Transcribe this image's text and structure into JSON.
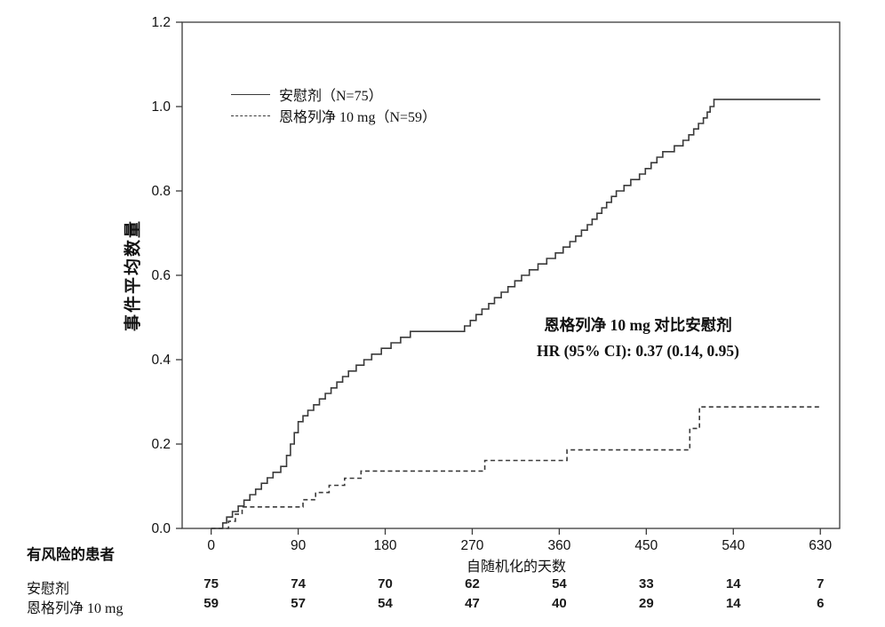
{
  "colors": {
    "line": "#3a3a3a",
    "frame": "#3a3a3a",
    "text": "#111111"
  },
  "chart_data": {
    "type": "line",
    "step": true,
    "title": "",
    "xlabel": "自随机化的天数",
    "ylabel": "事件平均数量",
    "xlim": [
      -30,
      650
    ],
    "ylim": [
      0,
      1.2
    ],
    "xticks": [
      0,
      90,
      180,
      270,
      360,
      450,
      540,
      630
    ],
    "yticks": [
      0.0,
      0.2,
      0.4,
      0.6,
      0.8,
      1.0,
      1.2
    ],
    "grid": false,
    "legend_position": "upper-left-inside",
    "annotation": {
      "line1": "恩格列净 10 mg 对比安慰剂",
      "line2": "HR (95% CI): 0.37 (0.14, 0.95)"
    },
    "series": [
      {
        "name": "安慰剂（N=75）",
        "dash": "solid",
        "points": [
          [
            0,
            0
          ],
          [
            8,
            0
          ],
          [
            12,
            0.013
          ],
          [
            16,
            0.027
          ],
          [
            22,
            0.04
          ],
          [
            28,
            0.053
          ],
          [
            34,
            0.067
          ],
          [
            40,
            0.08
          ],
          [
            46,
            0.093
          ],
          [
            52,
            0.107
          ],
          [
            58,
            0.12
          ],
          [
            64,
            0.133
          ],
          [
            72,
            0.147
          ],
          [
            78,
            0.173
          ],
          [
            82,
            0.2
          ],
          [
            86,
            0.227
          ],
          [
            90,
            0.253
          ],
          [
            95,
            0.267
          ],
          [
            100,
            0.28
          ],
          [
            106,
            0.293
          ],
          [
            112,
            0.307
          ],
          [
            118,
            0.32
          ],
          [
            124,
            0.333
          ],
          [
            130,
            0.347
          ],
          [
            136,
            0.36
          ],
          [
            142,
            0.373
          ],
          [
            150,
            0.387
          ],
          [
            158,
            0.4
          ],
          [
            166,
            0.413
          ],
          [
            176,
            0.427
          ],
          [
            186,
            0.44
          ],
          [
            196,
            0.453
          ],
          [
            206,
            0.467
          ],
          [
            262,
            0.48
          ],
          [
            268,
            0.493
          ],
          [
            274,
            0.507
          ],
          [
            280,
            0.52
          ],
          [
            287,
            0.533
          ],
          [
            293,
            0.547
          ],
          [
            300,
            0.56
          ],
          [
            307,
            0.573
          ],
          [
            314,
            0.587
          ],
          [
            321,
            0.6
          ],
          [
            329,
            0.613
          ],
          [
            338,
            0.627
          ],
          [
            347,
            0.64
          ],
          [
            356,
            0.653
          ],
          [
            364,
            0.667
          ],
          [
            371,
            0.68
          ],
          [
            377,
            0.693
          ],
          [
            383,
            0.707
          ],
          [
            389,
            0.72
          ],
          [
            394,
            0.733
          ],
          [
            399,
            0.747
          ],
          [
            404,
            0.76
          ],
          [
            409,
            0.773
          ],
          [
            414,
            0.787
          ],
          [
            419,
            0.8
          ],
          [
            427,
            0.813
          ],
          [
            434,
            0.827
          ],
          [
            443,
            0.84
          ],
          [
            449,
            0.853
          ],
          [
            455,
            0.867
          ],
          [
            461,
            0.88
          ],
          [
            467,
            0.893
          ],
          [
            479,
            0.907
          ],
          [
            488,
            0.92
          ],
          [
            494,
            0.933
          ],
          [
            499,
            0.947
          ],
          [
            504,
            0.96
          ],
          [
            509,
            0.973
          ],
          [
            513,
            0.987
          ],
          [
            516,
            1.0
          ],
          [
            520,
            1.017
          ],
          [
            630,
            1.017
          ]
        ]
      },
      {
        "name": "恩格列净 10 mg（N=59）",
        "dash": "dashed",
        "points": [
          [
            0,
            0
          ],
          [
            14,
            0
          ],
          [
            18,
            0.017
          ],
          [
            25,
            0.034
          ],
          [
            32,
            0.051
          ],
          [
            95,
            0.068
          ],
          [
            108,
            0.085
          ],
          [
            122,
            0.102
          ],
          [
            138,
            0.119
          ],
          [
            155,
            0.136
          ],
          [
            283,
            0.161
          ],
          [
            368,
            0.186
          ],
          [
            495,
            0.237
          ],
          [
            505,
            0.288
          ],
          [
            630,
            0.288
          ]
        ]
      }
    ],
    "risk_table": {
      "header": "有风险的患者",
      "x": [
        0,
        90,
        180,
        270,
        360,
        450,
        540,
        630
      ],
      "rows": [
        {
          "label": "安慰剂",
          "values": [
            75,
            74,
            70,
            62,
            54,
            33,
            14,
            7
          ]
        },
        {
          "label": "恩格列净 10 mg",
          "values": [
            59,
            57,
            54,
            47,
            40,
            29,
            14,
            6
          ]
        }
      ]
    }
  }
}
